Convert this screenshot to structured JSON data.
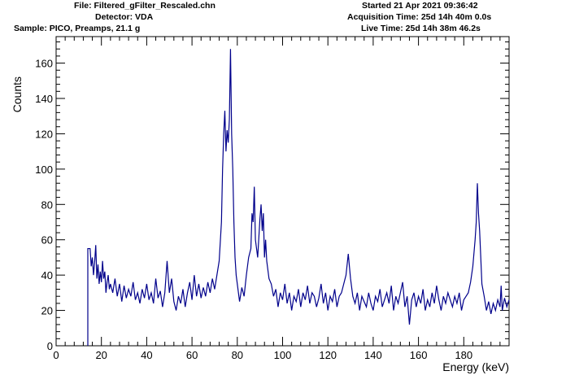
{
  "header": {
    "file": "File: Filtered_gFilter_Rescaled.chn",
    "detector": "Detector: VDA",
    "sample": "Sample: PICO, Preamps, 21.1 g",
    "started": "Started 21 Apr 2021 09:36:42",
    "acquisition": "Acquisition Time: 25d 14h 40m 0.0s",
    "live": "Live Time: 25d 14h 38m 46.2s"
  },
  "chart_data": {
    "type": "line",
    "title": "",
    "xlabel": "Energy (keV)",
    "ylabel": "Counts",
    "xlim": [
      0,
      200
    ],
    "ylim": [
      0,
      175
    ],
    "x_ticks": [
      0,
      20,
      40,
      60,
      80,
      100,
      120,
      140,
      160,
      180
    ],
    "y_ticks": [
      0,
      20,
      40,
      60,
      80,
      100,
      120,
      140,
      160
    ],
    "line_color": "#00008b",
    "series": [
      {
        "points": [
          [
            14,
            0
          ],
          [
            14,
            55
          ],
          [
            15,
            55
          ],
          [
            15.5,
            45
          ],
          [
            16,
            50
          ],
          [
            16.5,
            40
          ],
          [
            17,
            47
          ],
          [
            17.5,
            57
          ],
          [
            18,
            38
          ],
          [
            18.5,
            46
          ],
          [
            19,
            35
          ],
          [
            19.5,
            42
          ],
          [
            20,
            36
          ],
          [
            20.5,
            48
          ],
          [
            21,
            38
          ],
          [
            21.5,
            42
          ],
          [
            22,
            30
          ],
          [
            22.5,
            36
          ],
          [
            23,
            40
          ],
          [
            23.5,
            32
          ],
          [
            24,
            35
          ],
          [
            25,
            30
          ],
          [
            26,
            38
          ],
          [
            27,
            28
          ],
          [
            28,
            35
          ],
          [
            29,
            25
          ],
          [
            30,
            34
          ],
          [
            31,
            27
          ],
          [
            32,
            32
          ],
          [
            33,
            28
          ],
          [
            34,
            36
          ],
          [
            35,
            26
          ],
          [
            36,
            30
          ],
          [
            37,
            24
          ],
          [
            38,
            32
          ],
          [
            39,
            27
          ],
          [
            40,
            35
          ],
          [
            41,
            26
          ],
          [
            42,
            30
          ],
          [
            43,
            24
          ],
          [
            44,
            38
          ],
          [
            45,
            27
          ],
          [
            46,
            31
          ],
          [
            47,
            22
          ],
          [
            48,
            30
          ],
          [
            49,
            48
          ],
          [
            50,
            30
          ],
          [
            51,
            38
          ],
          [
            52,
            25
          ],
          [
            53,
            20
          ],
          [
            54,
            28
          ],
          [
            55,
            24
          ],
          [
            56,
            32
          ],
          [
            57,
            22
          ],
          [
            58,
            30
          ],
          [
            59,
            36
          ],
          [
            60,
            26
          ],
          [
            61,
            40
          ],
          [
            62,
            28
          ],
          [
            63,
            35
          ],
          [
            64,
            27
          ],
          [
            65,
            33
          ],
          [
            66,
            28
          ],
          [
            67,
            36
          ],
          [
            68,
            30
          ],
          [
            69,
            38
          ],
          [
            70,
            32
          ],
          [
            71,
            40
          ],
          [
            72,
            48
          ],
          [
            73,
            70
          ],
          [
            73.5,
            100
          ],
          [
            74,
            120
          ],
          [
            74.5,
            133
          ],
          [
            75,
            110
          ],
          [
            75.5,
            122
          ],
          [
            76,
            115
          ],
          [
            76.5,
            128
          ],
          [
            77,
            168
          ],
          [
            77.5,
            120
          ],
          [
            78,
            100
          ],
          [
            78.5,
            70
          ],
          [
            79,
            50
          ],
          [
            79.5,
            40
          ],
          [
            80,
            35
          ],
          [
            81,
            25
          ],
          [
            82,
            33
          ],
          [
            83,
            28
          ],
          [
            84,
            40
          ],
          [
            85,
            50
          ],
          [
            86,
            55
          ],
          [
            86.5,
            75
          ],
          [
            87,
            70
          ],
          [
            87.5,
            90
          ],
          [
            88,
            60
          ],
          [
            89,
            50
          ],
          [
            90,
            72
          ],
          [
            90.5,
            80
          ],
          [
            91,
            65
          ],
          [
            91.5,
            75
          ],
          [
            92,
            50
          ],
          [
            92.5,
            60
          ],
          [
            93,
            48
          ],
          [
            94,
            38
          ],
          [
            95,
            35
          ],
          [
            96,
            28
          ],
          [
            97,
            32
          ],
          [
            98,
            22
          ],
          [
            99,
            30
          ],
          [
            100,
            26
          ],
          [
            101,
            35
          ],
          [
            102,
            24
          ],
          [
            103,
            30
          ],
          [
            104,
            20
          ],
          [
            105,
            28
          ],
          [
            106,
            25
          ],
          [
            107,
            32
          ],
          [
            108,
            22
          ],
          [
            109,
            30
          ],
          [
            110,
            26
          ],
          [
            111,
            34
          ],
          [
            112,
            24
          ],
          [
            113,
            30
          ],
          [
            114,
            28
          ],
          [
            115,
            22
          ],
          [
            116,
            27
          ],
          [
            117,
            35
          ],
          [
            118,
            24
          ],
          [
            119,
            30
          ],
          [
            120,
            20
          ],
          [
            121,
            28
          ],
          [
            122,
            25
          ],
          [
            123,
            32
          ],
          [
            124,
            22
          ],
          [
            125,
            28
          ],
          [
            126,
            30
          ],
          [
            127,
            35
          ],
          [
            128,
            40
          ],
          [
            129,
            52
          ],
          [
            130,
            38
          ],
          [
            131,
            28
          ],
          [
            132,
            24
          ],
          [
            133,
            30
          ],
          [
            134,
            20
          ],
          [
            135,
            28
          ],
          [
            136,
            25
          ],
          [
            137,
            22
          ],
          [
            138,
            30
          ],
          [
            139,
            24
          ],
          [
            140,
            20
          ],
          [
            141,
            28
          ],
          [
            142,
            25
          ],
          [
            143,
            32
          ],
          [
            144,
            22
          ],
          [
            145,
            26
          ],
          [
            146,
            30
          ],
          [
            147,
            24
          ],
          [
            148,
            34
          ],
          [
            149,
            20
          ],
          [
            150,
            28
          ],
          [
            151,
            24
          ],
          [
            152,
            30
          ],
          [
            153,
            36
          ],
          [
            154,
            22
          ],
          [
            155,
            28
          ],
          [
            156,
            12
          ],
          [
            157,
            26
          ],
          [
            158,
            30
          ],
          [
            159,
            22
          ],
          [
            160,
            28
          ],
          [
            161,
            24
          ],
          [
            162,
            32
          ],
          [
            163,
            20
          ],
          [
            164,
            26
          ],
          [
            165,
            22
          ],
          [
            166,
            30
          ],
          [
            167,
            24
          ],
          [
            168,
            34
          ],
          [
            169,
            26
          ],
          [
            170,
            20
          ],
          [
            171,
            28
          ],
          [
            172,
            24
          ],
          [
            173,
            30
          ],
          [
            174,
            26
          ],
          [
            175,
            22
          ],
          [
            176,
            28
          ],
          [
            177,
            24
          ],
          [
            178,
            30
          ],
          [
            179,
            20
          ],
          [
            180,
            26
          ],
          [
            181,
            28
          ],
          [
            182,
            30
          ],
          [
            183,
            36
          ],
          [
            184,
            45
          ],
          [
            185,
            60
          ],
          [
            185.5,
            70
          ],
          [
            186,
            92
          ],
          [
            186.5,
            75
          ],
          [
            187,
            65
          ],
          [
            187.5,
            50
          ],
          [
            188,
            35
          ],
          [
            189,
            28
          ],
          [
            190,
            20
          ],
          [
            191,
            25
          ],
          [
            192,
            18
          ],
          [
            193,
            24
          ],
          [
            194,
            20
          ],
          [
            195,
            26
          ],
          [
            196,
            22
          ],
          [
            196.5,
            34
          ],
          [
            197,
            20
          ],
          [
            198,
            27
          ],
          [
            199,
            22
          ],
          [
            200,
            26
          ]
        ]
      }
    ]
  }
}
